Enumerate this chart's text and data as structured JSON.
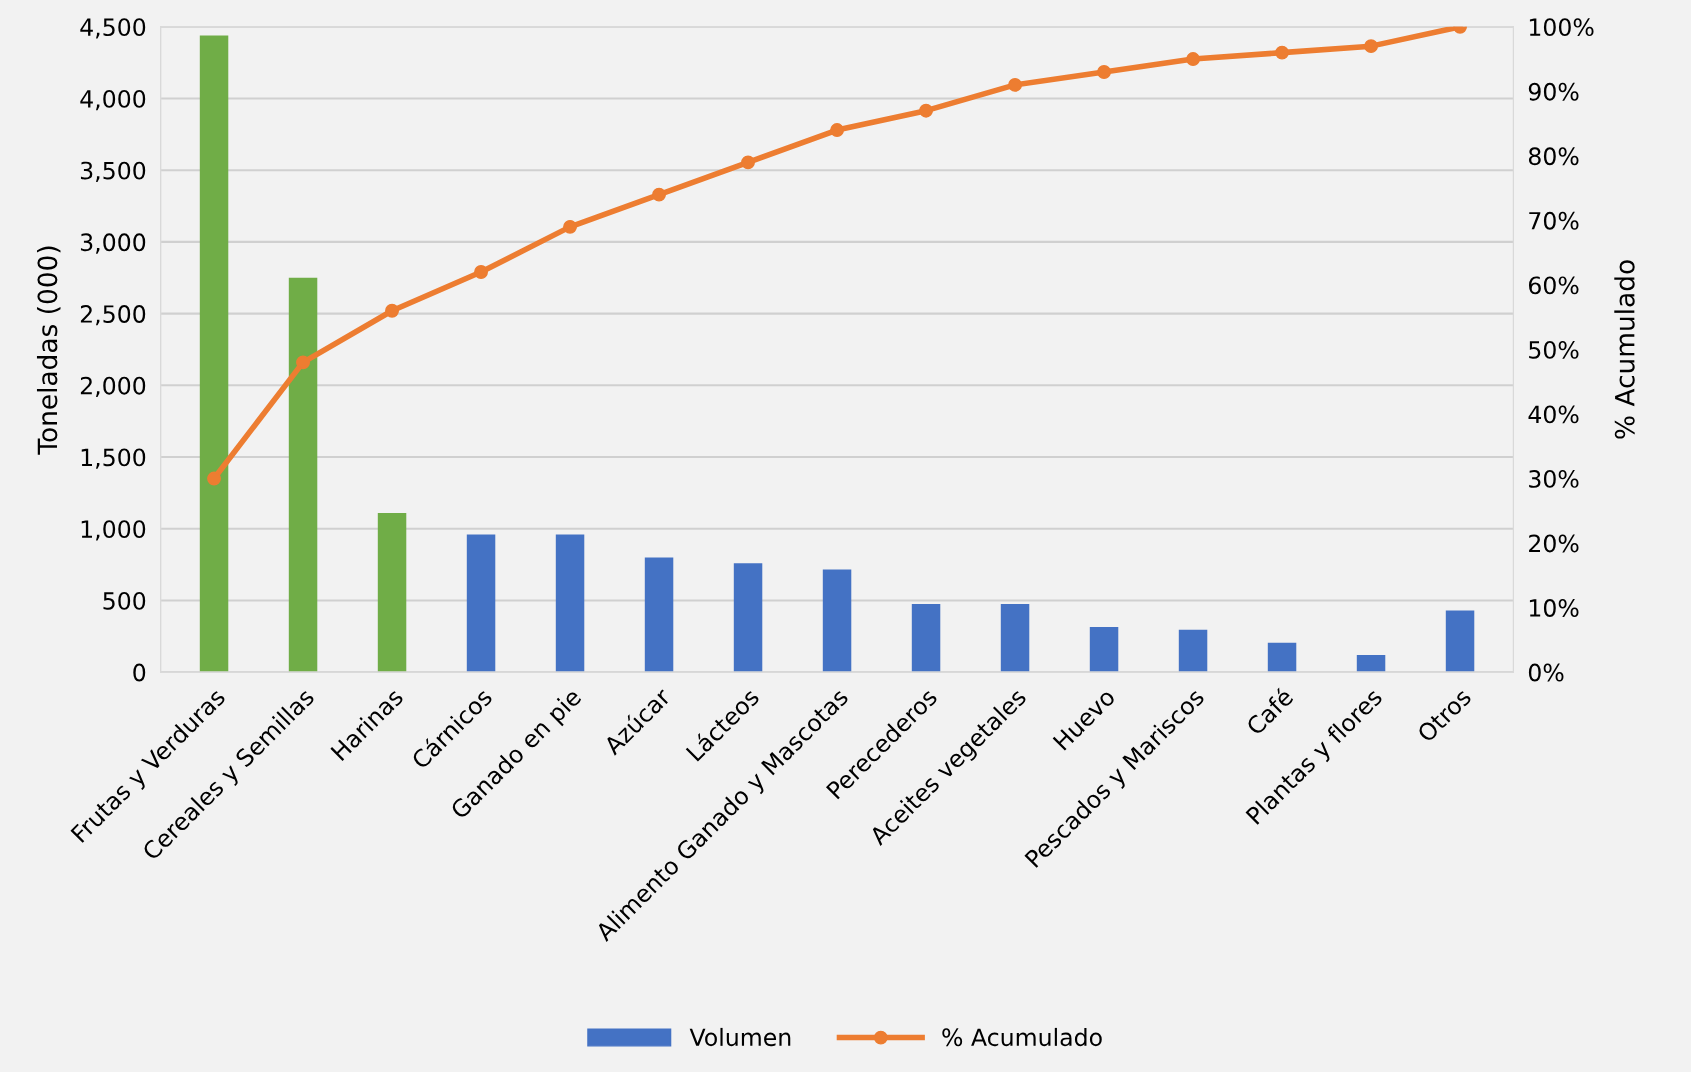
{
  "chart_data": {
    "type": "bar",
    "ylabel": "Toneladas (000)",
    "y2label": "% Acumulado",
    "categories": [
      "Frutas y Verduras",
      "Cereales y Semillas",
      "Harinas",
      "Cárnicos",
      "Ganado en pie",
      "Azúcar",
      "Lácteos",
      "Alimento Ganado y Mascotas",
      "Perecederos",
      "Aceites vegetales",
      "Huevo",
      "Pescados y Mariscos",
      "Café",
      "Plantas y flores",
      "Otros"
    ],
    "series": [
      {
        "name": "Volumen",
        "color": "#4472c4",
        "colors": [
          "#70ad47",
          "#70ad47",
          "#70ad47",
          "#4472c4",
          "#4472c4",
          "#4472c4",
          "#4472c4",
          "#4472c4",
          "#4472c4",
          "#4472c4",
          "#4472c4",
          "#4472c4",
          "#4472c4",
          "#4472c4",
          "#4472c4"
        ],
        "values": [
          4440,
          2750,
          1110,
          960,
          960,
          800,
          760,
          715,
          475,
          475,
          315,
          295,
          205,
          120,
          430
        ]
      },
      {
        "name": "% Acumulado",
        "type": "line",
        "axis": "y2",
        "color": "#ed7d31",
        "marker": "circle",
        "values": [
          30,
          48,
          56,
          62,
          69,
          74,
          79,
          84,
          87,
          91,
          93,
          95,
          96,
          97,
          100
        ]
      }
    ],
    "ylim": [
      0,
      4500
    ],
    "yticks": [
      0,
      500,
      {
        "value": 1000,
        "label": "1,000"
      },
      {
        "value": 1500,
        "label": "1,500"
      },
      {
        "value": 2000,
        "label": "2,000"
      },
      {
        "value": 2500,
        "label": "2,500"
      },
      {
        "value": 3000,
        "label": "3,000"
      },
      {
        "value": 3500,
        "label": "3,500"
      },
      {
        "value": 4000,
        "label": "4,000"
      },
      {
        "value": 4500,
        "label": "4,500"
      }
    ],
    "y2lim": [
      0,
      100
    ],
    "y2ticks": [
      {
        "value": 0,
        "label": "0%"
      },
      {
        "value": 10,
        "label": "10%"
      },
      {
        "value": 20,
        "label": "20%"
      },
      {
        "value": 30,
        "label": "30%"
      },
      {
        "value": 40,
        "label": "40%"
      },
      {
        "value": 50,
        "label": "50%"
      },
      {
        "value": 60,
        "label": "60%"
      },
      {
        "value": 70,
        "label": "70%"
      },
      {
        "value": 80,
        "label": "80%"
      },
      {
        "value": 90,
        "label": "90%"
      },
      {
        "value": 100,
        "label": "100%"
      }
    ],
    "grid": "y",
    "legend": "bottom"
  }
}
